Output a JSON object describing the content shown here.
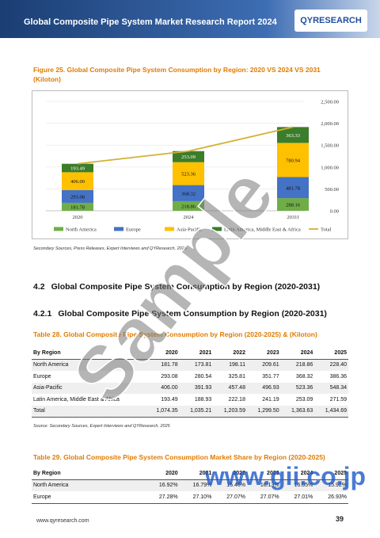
{
  "header": {
    "title": "Global Composite Pipe System Market Research Report 2024",
    "logo": "QYRESEARCH"
  },
  "figure": {
    "caption": "Figure 25.   Global Composite Pipe System Consumption by Region: 2020 VS 2024 VS 2031 (Kiloton)",
    "source": "Secondary Sources, Press Releases, Expert Interviews and QYResearch, 2025"
  },
  "chart_data": {
    "type": "bar",
    "stacked": true,
    "categories": [
      "2020",
      "2024",
      "2031f"
    ],
    "series": [
      {
        "name": "North America",
        "color": "#70ad47",
        "values": [
          181.78,
          218.86,
          288.16
        ],
        "value_labels": [
          "181.78",
          "218.86",
          "288.16"
        ]
      },
      {
        "name": "Europe",
        "color": "#4472c4",
        "values": [
          293.08,
          368.32,
          481.78
        ],
        "value_labels": [
          "293.08",
          "368.32",
          "481.78"
        ]
      },
      {
        "name": "Asia-Pacific",
        "color": "#ffc000",
        "values": [
          406.0,
          523.36,
          780.94
        ],
        "value_labels": [
          "406.00",
          "523.36",
          "780.94"
        ]
      },
      {
        "name": "Latin America, Middle East & Africa",
        "color": "#3b7d2a",
        "values": [
          193.49,
          253.09,
          363.33
        ],
        "value_labels": [
          "193.49",
          "253.09",
          "363.33"
        ]
      },
      {
        "name": "Total",
        "type": "line",
        "color": "#d4b035",
        "values": [
          1074.35,
          1363.63,
          1914.21
        ]
      }
    ],
    "ylim": [
      0,
      2500
    ],
    "yticks": [
      {
        "value": 0,
        "label": "0.00"
      },
      {
        "value": 500,
        "label": "500.00"
      },
      {
        "value": 1000,
        "label": "1,000.00"
      },
      {
        "value": 1500,
        "label": "1,500.00"
      },
      {
        "value": 2000,
        "label": "2,000.00"
      },
      {
        "value": 2500,
        "label": "2,500.00"
      }
    ],
    "grid": true,
    "legend": "bottom"
  },
  "sections": [
    {
      "number": "4.2",
      "title": "Global Composite Pipe System Consumption by Region (2020-2031)"
    },
    {
      "number": "4.2.1",
      "title": "Global Composite Pipe System Consumption by Region (2020-2031)"
    }
  ],
  "table28": {
    "caption": "Table 28.   Global Composite Pipe System Consumption by Region (2020-2025) & (Kiloton)",
    "columns": [
      "By Region",
      "2020",
      "2021",
      "2022",
      "2023",
      "2024",
      "2025"
    ],
    "rows": [
      [
        "North America",
        "181.78",
        "173.81",
        "198.11",
        "209.61",
        "218.86",
        "228.40"
      ],
      [
        "Europe",
        "293.08",
        "280.54",
        "325.81",
        "351.77",
        "368.32",
        "386.36"
      ],
      [
        "Asia-Pacific",
        "406.00",
        "391.93",
        "457.48",
        "496.93",
        "523.36",
        "548.34"
      ],
      [
        "Latin America, Middle East & Africa",
        "193.49",
        "188.93",
        "222.18",
        "241.19",
        "253.09",
        "271.59"
      ],
      [
        "Total",
        "1,074.35",
        "1,035.21",
        "1,203.59",
        "1,299.50",
        "1,363.63",
        "1,434.69"
      ]
    ],
    "source": "Source: Secondary Sources, Expert Interviews and QYResearch, 2025"
  },
  "table29": {
    "caption": "Table 29.   Global Composite Pipe System Consumption Market Share by Region (2020-2025)",
    "columns": [
      "By Region",
      "2020",
      "2021",
      "2022",
      "2023",
      "2024",
      "2025"
    ],
    "rows": [
      [
        "North America",
        "16.92%",
        "16.79%",
        "16.46%",
        "16.13%",
        "16.05%",
        "15.92%"
      ],
      [
        "Europe",
        "27.28%",
        "27.10%",
        "27.07%",
        "27.07%",
        "27.01%",
        "26.93%"
      ]
    ]
  },
  "footer": {
    "url": "www.qyresearch.com",
    "page": "39"
  },
  "watermarks": [
    "Sample",
    "www.gii.co.jp"
  ]
}
